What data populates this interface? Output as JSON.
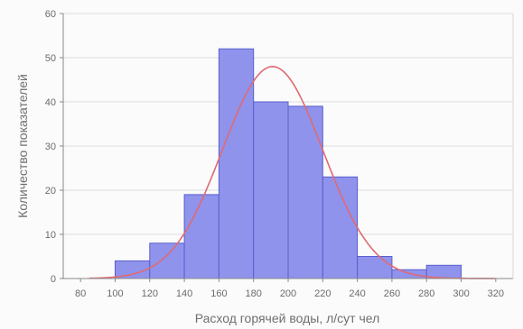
{
  "chart_data": {
    "type": "bar",
    "title": "",
    "xlabel": "Расход горячей воды, л/сут  чел",
    "ylabel": "Количество показателей",
    "x_ticks": [
      "80",
      "100",
      "120",
      "140",
      "160",
      "180",
      "200",
      "220",
      "240",
      "260",
      "280",
      "300",
      "320"
    ],
    "y_ticks": [
      "0",
      "10",
      "20",
      "30",
      "40",
      "50",
      "60"
    ],
    "xlim": [
      70,
      330
    ],
    "ylim": [
      0,
      60
    ],
    "grid": true,
    "bins": [
      {
        "start": 100,
        "end": 120,
        "value": 4
      },
      {
        "start": 120,
        "end": 140,
        "value": 8
      },
      {
        "start": 140,
        "end": 160,
        "value": 19
      },
      {
        "start": 160,
        "end": 180,
        "value": 52
      },
      {
        "start": 180,
        "end": 200,
        "value": 40
      },
      {
        "start": 200,
        "end": 220,
        "value": 39
      },
      {
        "start": 220,
        "end": 240,
        "value": 23
      },
      {
        "start": 240,
        "end": 260,
        "value": 5
      },
      {
        "start": 260,
        "end": 280,
        "value": 2
      },
      {
        "start": 280,
        "end": 300,
        "value": 3
      }
    ],
    "curve": {
      "type": "normal",
      "mean": 191,
      "sd": 29,
      "peak": 48
    },
    "colors": {
      "bar_fill": "#8f93ec",
      "bar_stroke": "#5a5fcc",
      "curve": "#e06a73",
      "grid": "#dedede",
      "axis": "#8a8a8a",
      "text": "#6b6b6b"
    }
  }
}
